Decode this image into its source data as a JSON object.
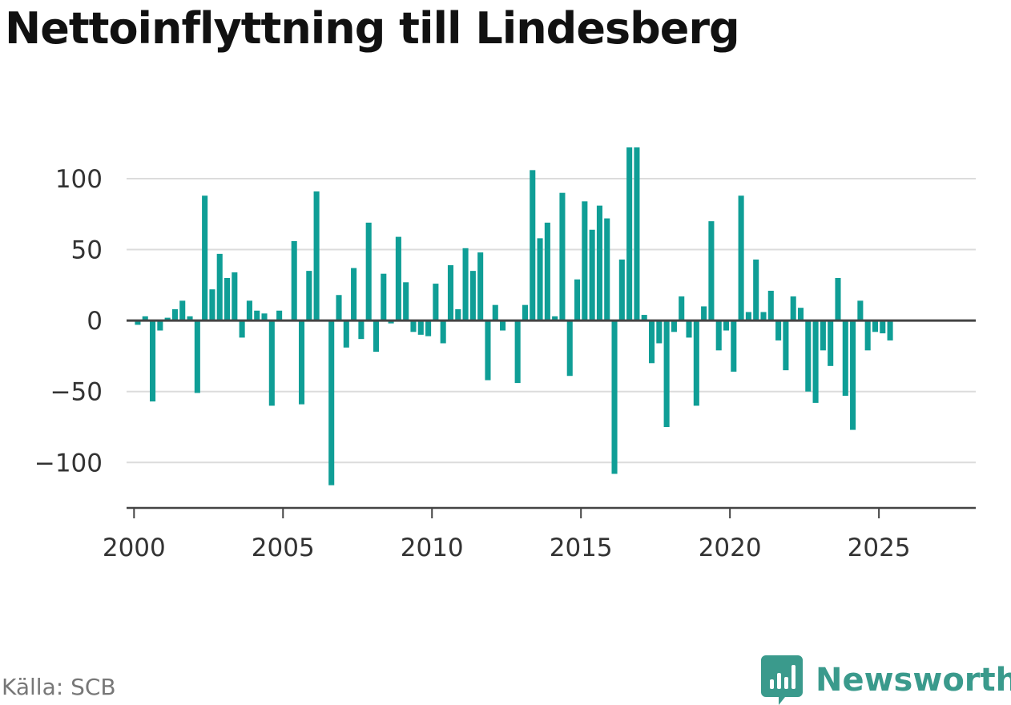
{
  "title": "Nettoinflyttning till Lindesberg",
  "source": "Källa: SCB",
  "brand": {
    "name": "Newsworthy",
    "logo_icon": "chart-speech-bubble-icon"
  },
  "colors": {
    "bar": "#0f9e96",
    "zero_line": "#444444",
    "grid": "#dcdcdc",
    "brand": "#3a9a8c"
  },
  "chart_data": {
    "type": "bar",
    "grid": true,
    "xlim": [
      1999.75,
      2028.25
    ],
    "ylim": [
      -132,
      122
    ],
    "y_ticks": [
      100,
      50,
      0,
      -50,
      -100
    ],
    "y_tick_labels": [
      "100",
      "50",
      "0",
      "−50",
      "−100"
    ],
    "x_ticks": [
      2000,
      2005,
      2010,
      2015,
      2020,
      2025
    ],
    "x_tick_labels": [
      "2000",
      "2005",
      "2010",
      "2015",
      "2020",
      "2025"
    ],
    "start": 2000.125,
    "period": 0.25,
    "values": [
      -3,
      3,
      -57,
      -7,
      2,
      8,
      14,
      3,
      -51,
      88,
      22,
      47,
      30,
      34,
      -12,
      14,
      7,
      5,
      -60,
      7,
      0,
      56,
      -59,
      35,
      91,
      0,
      -116,
      18,
      -19,
      37,
      -13,
      69,
      -22,
      33,
      -2,
      59,
      27,
      -8,
      -10,
      -11,
      26,
      -16,
      39,
      8,
      51,
      35,
      48,
      -42,
      11,
      -7,
      0,
      -44,
      11,
      106,
      58,
      69,
      3,
      90,
      -39,
      29,
      84,
      64,
      81,
      72,
      -108,
      43,
      122,
      122,
      4,
      -30,
      -16,
      -75,
      -8,
      17,
      -12,
      -60,
      10,
      70,
      -21,
      -7,
      -36,
      88,
      6,
      43,
      6,
      21,
      -14,
      -35,
      17,
      9,
      -50,
      -58,
      -21,
      -32,
      30,
      -53,
      -77,
      14,
      -21,
      -8,
      -9,
      -14
    ]
  }
}
